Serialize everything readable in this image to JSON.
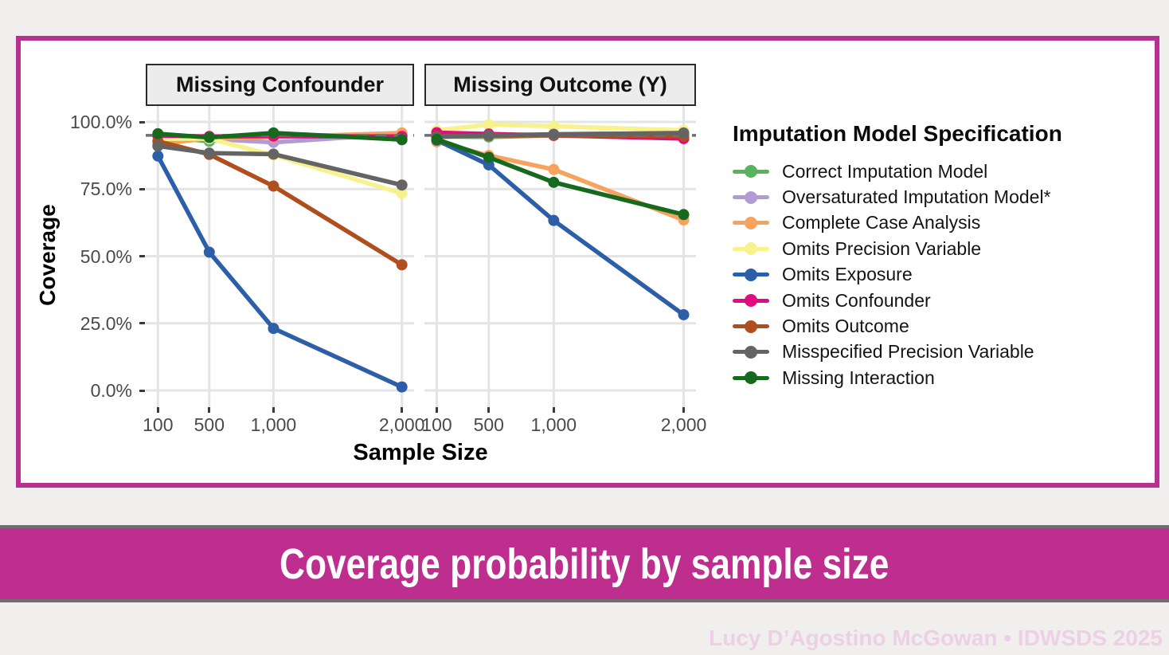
{
  "slide": {
    "background": "#f0efee",
    "banner": {
      "text": "Coverage probability by sample size",
      "bg": "#bd2e8e",
      "border_color": "#6f6f6f",
      "text_color": "#ffffff"
    },
    "footer": {
      "text": "Lucy D’Agostino McGowan • IDWSDS 2025",
      "color": "#edd0e5"
    }
  },
  "card": {
    "bg": "#ffffff",
    "border_color": "#b93190"
  },
  "chart_data": {
    "type": "line",
    "xlabel": "Sample Size",
    "ylabel": "Coverage",
    "x": [
      100,
      500,
      1000,
      2000
    ],
    "x_tick_labels": [
      "100",
      "500",
      "1,000",
      "2,000"
    ],
    "y_ticks": [
      0,
      25,
      50,
      75,
      100
    ],
    "y_tick_labels": [
      "0.0%",
      "25.0%",
      "50.0%",
      "75.0%",
      "100.0%"
    ],
    "ylim": [
      0,
      100
    ],
    "grid": "major",
    "reference_line": {
      "y": 95,
      "style": "dashed",
      "color": "#6f6f6f"
    },
    "facets": [
      {
        "label": "Missing Confounder",
        "key": "missing_confounder"
      },
      {
        "label": "Missing Outcome (Y)",
        "key": "missing_outcome_y"
      }
    ],
    "legend": {
      "title": "Imputation Model Specification",
      "position": "right"
    },
    "series": [
      {
        "name": "Correct Imputation Model",
        "color": "#57b35c",
        "values": {
          "missing_confounder": [
            94.6,
            92.8,
            94.9,
            95.0
          ],
          "missing_outcome_y": [
            94.6,
            94.4,
            95.0,
            95.2
          ]
        }
      },
      {
        "name": "Oversaturated Imputation Model*",
        "color": "#b29bd3",
        "values": {
          "missing_confounder": [
            94.2,
            93.7,
            92.4,
            95.5
          ],
          "missing_outcome_y": [
            94.8,
            95.1,
            94.9,
            95.3
          ]
        }
      },
      {
        "name": "Complete Case Analysis",
        "color": "#f7a35f",
        "values": {
          "missing_confounder": [
            91.6,
            94.0,
            94.4,
            95.9
          ],
          "missing_outcome_y": [
            92.6,
            87.5,
            82.3,
            63.5
          ]
        }
      },
      {
        "name": "Omits Precision Variable",
        "color": "#f7f28b",
        "values": {
          "missing_confounder": [
            93.7,
            93.8,
            87.6,
            73.4
          ],
          "missing_outcome_y": [
            96.8,
            99.0,
            98.4,
            96.9
          ]
        }
      },
      {
        "name": "Omits Exposure",
        "color": "#2d5fa9",
        "values": {
          "missing_confounder": [
            87.3,
            51.5,
            23.1,
            1.3
          ],
          "missing_outcome_y": [
            93.2,
            84.0,
            63.3,
            28.2
          ]
        }
      },
      {
        "name": "Omits Confounder",
        "color": "#e30b80",
        "values": {
          "missing_confounder": [
            94.9,
            94.6,
            94.7,
            94.6
          ],
          "missing_outcome_y": [
            96.0,
            95.5,
            95.0,
            93.8
          ]
        }
      },
      {
        "name": "Omits Outcome",
        "color": "#b04f1d",
        "values": {
          "missing_confounder": [
            92.8,
            87.9,
            76.1,
            46.8
          ],
          "missing_outcome_y": [
            94.6,
            94.9,
            95.0,
            94.7
          ]
        }
      },
      {
        "name": "Misspecified Precision Variable",
        "color": "#646464",
        "values": {
          "missing_confounder": [
            91.0,
            88.4,
            88.0,
            76.5
          ],
          "missing_outcome_y": [
            94.4,
            95.0,
            95.4,
            95.9
          ]
        }
      },
      {
        "name": "Missing Interaction",
        "color": "#17691d",
        "values": {
          "missing_confounder": [
            95.6,
            94.2,
            95.9,
            93.4
          ],
          "missing_outcome_y": [
            93.5,
            86.8,
            77.5,
            65.5
          ]
        }
      }
    ]
  }
}
